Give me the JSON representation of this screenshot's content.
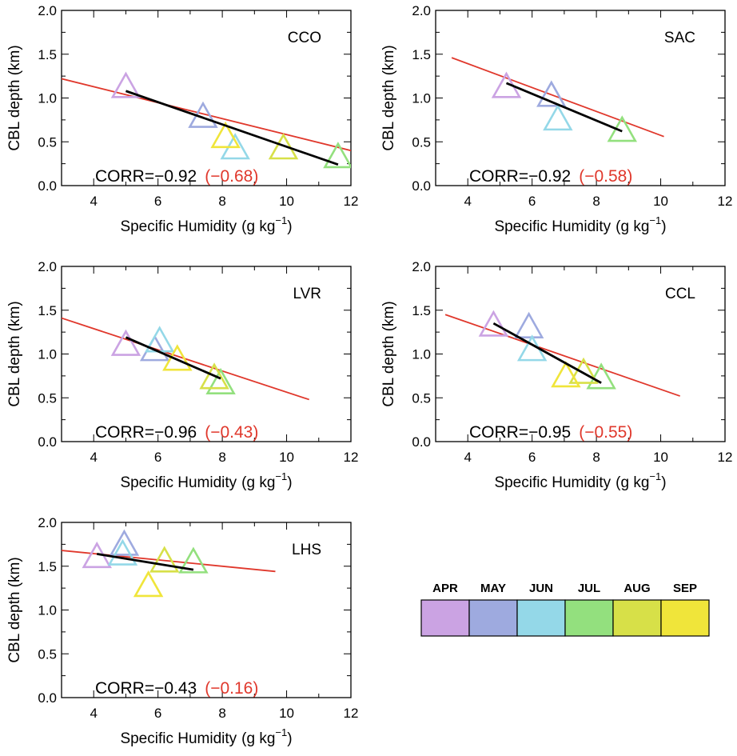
{
  "chart_data": [
    {
      "type": "scatter",
      "station": "CCO",
      "xlabel": "Specific Humidity",
      "xunit_main": "(g kg",
      "xunit_sup": "−1",
      "xunit_end": ")",
      "ylabel": "CBL depth (km)",
      "xlim": [
        3,
        12
      ],
      "ylim": [
        0,
        2
      ],
      "xticks": [
        "4",
        "6",
        "8",
        "10",
        "12"
      ],
      "yticks": [
        "0.0",
        "0.5",
        "1.0",
        "1.5",
        "2.0"
      ],
      "points": [
        {
          "month": "APR",
          "x": 5.0,
          "y": 1.12
        },
        {
          "month": "MAY",
          "x": 7.4,
          "y": 0.78
        },
        {
          "month": "JUN",
          "x": 8.4,
          "y": 0.42
        },
        {
          "month": "JUL",
          "x": 11.6,
          "y": 0.32
        },
        {
          "month": "AUG",
          "x": 9.9,
          "y": 0.42
        },
        {
          "month": "SEP",
          "x": 8.1,
          "y": 0.55
        }
      ],
      "fit_black": {
        "x": [
          5.0,
          11.6
        ],
        "y": [
          1.08,
          0.24
        ]
      },
      "fit_red": {
        "x": [
          3.0,
          12.0
        ],
        "y": [
          1.22,
          0.4
        ]
      },
      "corr_label": "CORR=−0.92",
      "corr_other": "(−0.68)"
    },
    {
      "type": "scatter",
      "station": "SAC",
      "xlabel": "Specific Humidity",
      "xunit_main": "(g kg",
      "xunit_sup": "−1",
      "xunit_end": ")",
      "ylabel": "CBL depth (km)",
      "xlim": [
        3,
        12
      ],
      "ylim": [
        0,
        2
      ],
      "xticks": [
        "4",
        "6",
        "8",
        "10",
        "12"
      ],
      "yticks": [
        "0.0",
        "0.5",
        "1.0",
        "1.5",
        "2.0"
      ],
      "points": [
        {
          "month": "APR",
          "x": 5.2,
          "y": 1.12
        },
        {
          "month": "MAY",
          "x": 6.6,
          "y": 1.02
        },
        {
          "month": "JUN",
          "x": 6.8,
          "y": 0.75
        },
        {
          "month": "JUL",
          "x": 8.8,
          "y": 0.62
        }
      ],
      "fit_black": {
        "x": [
          5.2,
          8.8
        ],
        "y": [
          1.17,
          0.62
        ]
      },
      "fit_red": {
        "x": [
          3.5,
          10.1
        ],
        "y": [
          1.46,
          0.56
        ]
      },
      "corr_label": "CORR=−0.92",
      "corr_other": "(−0.58)"
    },
    {
      "type": "scatter",
      "station": "LVR",
      "xlabel": "Specific Humidity",
      "xunit_main": "(g kg",
      "xunit_sup": "−1",
      "xunit_end": ")",
      "ylabel": "CBL depth (km)",
      "xlim": [
        3,
        12
      ],
      "ylim": [
        0,
        2
      ],
      "xticks": [
        "4",
        "6",
        "8",
        "10",
        "12"
      ],
      "yticks": [
        "0.0",
        "0.5",
        "1.0",
        "1.5",
        "2.0"
      ],
      "points": [
        {
          "month": "APR",
          "x": 5.0,
          "y": 1.1
        },
        {
          "month": "MAY",
          "x": 5.9,
          "y": 1.04
        },
        {
          "month": "JUN",
          "x": 6.05,
          "y": 1.14
        },
        {
          "month": "JUL",
          "x": 7.95,
          "y": 0.66
        },
        {
          "month": "AUG",
          "x": 7.75,
          "y": 0.72
        },
        {
          "month": "SEP",
          "x": 6.6,
          "y": 0.93
        }
      ],
      "fit_black": {
        "x": [
          5.0,
          7.95
        ],
        "y": [
          1.19,
          0.72
        ]
      },
      "fit_red": {
        "x": [
          3.0,
          10.7
        ],
        "y": [
          1.41,
          0.48
        ]
      },
      "corr_label": "CORR=−0.96",
      "corr_other": "(−0.43)"
    },
    {
      "type": "scatter",
      "station": "CCL",
      "xlabel": "Specific Humidity",
      "xunit_main": "(g kg",
      "xunit_sup": "−1",
      "xunit_end": ")",
      "ylabel": "CBL depth (km)",
      "xlim": [
        3,
        12
      ],
      "ylim": [
        0,
        2
      ],
      "xticks": [
        "4",
        "6",
        "8",
        "10",
        "12"
      ],
      "yticks": [
        "0.0",
        "0.5",
        "1.0",
        "1.5",
        "2.0"
      ],
      "points": [
        {
          "month": "APR",
          "x": 4.8,
          "y": 1.32
        },
        {
          "month": "MAY",
          "x": 5.9,
          "y": 1.3
        },
        {
          "month": "JUN",
          "x": 6.0,
          "y": 1.04
        },
        {
          "month": "JUL",
          "x": 8.15,
          "y": 0.72
        },
        {
          "month": "AUG",
          "x": 7.6,
          "y": 0.78
        },
        {
          "month": "SEP",
          "x": 7.05,
          "y": 0.74
        }
      ],
      "fit_black": {
        "x": [
          4.8,
          8.15
        ],
        "y": [
          1.35,
          0.67
        ]
      },
      "fit_red": {
        "x": [
          3.3,
          10.6
        ],
        "y": [
          1.45,
          0.52
        ]
      },
      "corr_label": "CORR=−0.95",
      "corr_other": "(−0.55)"
    },
    {
      "type": "scatter",
      "station": "LHS",
      "xlabel": "Specific Humidity",
      "xunit_main": "(g kg",
      "xunit_sup": "−1",
      "xunit_end": ")",
      "ylabel": "CBL depth (km)",
      "xlim": [
        3,
        12
      ],
      "ylim": [
        0,
        2
      ],
      "xticks": [
        "4",
        "6",
        "8",
        "10",
        "12"
      ],
      "yticks": [
        "0.0",
        "0.5",
        "1.0",
        "1.5",
        "2.0"
      ],
      "points": [
        {
          "month": "APR",
          "x": 4.1,
          "y": 1.6
        },
        {
          "month": "MAY",
          "x": 4.95,
          "y": 1.74
        },
        {
          "month": "JUN",
          "x": 4.9,
          "y": 1.63
        },
        {
          "month": "JUL",
          "x": 7.1,
          "y": 1.54
        },
        {
          "month": "AUG",
          "x": 6.2,
          "y": 1.55
        },
        {
          "month": "SEP",
          "x": 5.7,
          "y": 1.27
        }
      ],
      "fit_black": {
        "x": [
          4.1,
          7.1
        ],
        "y": [
          1.64,
          1.46
        ]
      },
      "fit_red": {
        "x": [
          3.0,
          9.65
        ],
        "y": [
          1.68,
          1.44
        ]
      },
      "corr_label": "CORR=−0.43",
      "corr_other": "(−0.16)"
    }
  ],
  "legend": [
    {
      "label": "APR",
      "color": "#cba3e3"
    },
    {
      "label": "MAY",
      "color": "#9eaadf"
    },
    {
      "label": "JUN",
      "color": "#94d8e8"
    },
    {
      "label": "JUL",
      "color": "#93e07e"
    },
    {
      "label": "AUG",
      "color": "#d7e048"
    },
    {
      "label": "SEP",
      "color": "#f0e53a"
    }
  ],
  "colors": {
    "APR": "#cba3e3",
    "MAY": "#9eaadf",
    "JUN": "#94d8e8",
    "JUL": "#93e07e",
    "AUG": "#d7e048",
    "SEP": "#f0e53a",
    "fit_black": "#000000",
    "fit_red": "#e0382c"
  }
}
